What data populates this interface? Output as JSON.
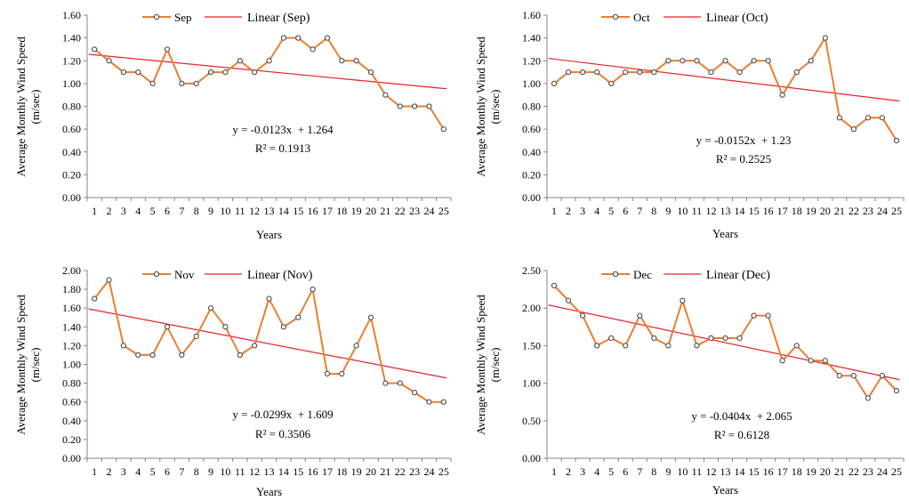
{
  "colors": {
    "series": "#ED7D31",
    "trend": "#E8232A",
    "axis": "#868686",
    "marker_fill": "#ffffff",
    "marker_stroke": "#404040"
  },
  "chart_data": [
    {
      "type": "line",
      "x": [
        1,
        2,
        3,
        4,
        5,
        6,
        7,
        8,
        9,
        10,
        11,
        12,
        13,
        14,
        15,
        16,
        17,
        18,
        19,
        20,
        21,
        22,
        23,
        24,
        25
      ],
      "categories": [
        "1",
        "2",
        "3",
        "4",
        "5",
        "6",
        "7",
        "8",
        "9",
        "10",
        "11",
        "12",
        "13",
        "14",
        "15",
        "16",
        "17",
        "18",
        "19",
        "20",
        "21",
        "22",
        "23",
        "24",
        "25"
      ],
      "series": [
        {
          "name": "Sep",
          "values": [
            1.3,
            1.2,
            1.1,
            1.1,
            1.0,
            1.3,
            1.0,
            1.0,
            1.1,
            1.1,
            1.2,
            1.1,
            1.2,
            1.4,
            1.4,
            1.3,
            1.4,
            1.2,
            1.2,
            1.1,
            0.9,
            0.8,
            0.8,
            0.8,
            0.6
          ]
        }
      ],
      "trendline": {
        "name": "Linear (Sep)",
        "slope": -0.0123,
        "intercept": 1.264,
        "equation": "y = -0.0123x  + 1.264",
        "r2": "R² = 0.1913"
      },
      "xlabel": "Years",
      "ylabel": "Average Monthly Wind Speed (m/sec)",
      "ylim": [
        0,
        1.6
      ],
      "yticks": [
        "0.00",
        "0.20",
        "0.40",
        "0.60",
        "0.80",
        "1.00",
        "1.20",
        "1.40",
        "1.60"
      ],
      "grid": false,
      "legend": "top"
    },
    {
      "type": "line",
      "x": [
        1,
        2,
        3,
        4,
        5,
        6,
        7,
        8,
        9,
        10,
        11,
        12,
        13,
        14,
        15,
        16,
        17,
        18,
        19,
        20,
        21,
        22,
        23,
        24,
        25
      ],
      "categories": [
        "1",
        "2",
        "3",
        "4",
        "5",
        "6",
        "7",
        "8",
        "9",
        "10",
        "11",
        "12",
        "13",
        "14",
        "15",
        "16",
        "17",
        "18",
        "19",
        "20",
        "21",
        "22",
        "23",
        "24",
        "25"
      ],
      "series": [
        {
          "name": "Oct",
          "values": [
            1.0,
            1.1,
            1.1,
            1.1,
            1.0,
            1.1,
            1.1,
            1.1,
            1.2,
            1.2,
            1.2,
            1.1,
            1.2,
            1.1,
            1.2,
            1.2,
            0.9,
            1.1,
            1.2,
            1.4,
            0.7,
            0.6,
            0.7,
            0.7,
            0.5
          ]
        }
      ],
      "trendline": {
        "name": "Linear (Oct)",
        "slope": -0.0152,
        "intercept": 1.23,
        "equation": "y = -0.0152x  + 1.23",
        "r2": "R² = 0.2525"
      },
      "xlabel": "Years",
      "ylabel": "Average Monthly Wind Speed (m/sec)",
      "ylim": [
        0,
        1.6
      ],
      "yticks": [
        "0.00",
        "0.20",
        "0.40",
        "0.60",
        "0.80",
        "1.00",
        "1.20",
        "1.40",
        "1.60"
      ],
      "grid": false,
      "legend": "top"
    },
    {
      "type": "line",
      "x": [
        1,
        2,
        3,
        4,
        5,
        6,
        7,
        8,
        9,
        10,
        11,
        12,
        13,
        14,
        15,
        16,
        17,
        18,
        19,
        20,
        21,
        22,
        23,
        24,
        25
      ],
      "categories": [
        "1",
        "2",
        "3",
        "4",
        "5",
        "6",
        "7",
        "8",
        "9",
        "10",
        "11",
        "12",
        "13",
        "14",
        "15",
        "16",
        "17",
        "18",
        "19",
        "20",
        "21",
        "22",
        "23",
        "24",
        "25"
      ],
      "series": [
        {
          "name": "Nov",
          "values": [
            1.7,
            1.9,
            1.2,
            1.1,
            1.1,
            1.4,
            1.1,
            1.3,
            1.6,
            1.4,
            1.1,
            1.2,
            1.7,
            1.4,
            1.5,
            1.8,
            0.9,
            0.9,
            1.2,
            1.5,
            0.8,
            0.8,
            0.7,
            0.6,
            0.6
          ]
        }
      ],
      "trendline": {
        "name": "Linear (Nov)",
        "slope": -0.0299,
        "intercept": 1.609,
        "equation": "y = -0.0299x  + 1.609",
        "r2": "R² = 0.3506"
      },
      "xlabel": "Years",
      "ylabel": "Average Monthly Wind Speed (m/sec)",
      "ylim": [
        0,
        2.0
      ],
      "yticks": [
        "0.00",
        "0.20",
        "0.40",
        "0.60",
        "0.80",
        "1.00",
        "1.20",
        "1.40",
        "1.60",
        "1.80",
        "2.00"
      ],
      "grid": false,
      "legend": "top"
    },
    {
      "type": "line",
      "x": [
        1,
        2,
        3,
        4,
        5,
        6,
        7,
        8,
        9,
        10,
        11,
        12,
        13,
        14,
        15,
        16,
        17,
        18,
        19,
        20,
        21,
        22,
        23,
        24,
        25
      ],
      "categories": [
        "1",
        "2",
        "3",
        "4",
        "5",
        "6",
        "7",
        "8",
        "9",
        "10",
        "11",
        "12",
        "13",
        "14",
        "15",
        "16",
        "17",
        "18",
        "19",
        "20",
        "21",
        "22",
        "23",
        "24",
        "25"
      ],
      "series": [
        {
          "name": "Dec",
          "values": [
            2.3,
            2.1,
            1.9,
            1.5,
            1.6,
            1.5,
            1.9,
            1.6,
            1.5,
            2.1,
            1.5,
            1.6,
            1.6,
            1.6,
            1.9,
            1.9,
            1.3,
            1.5,
            1.3,
            1.3,
            1.1,
            1.1,
            0.8,
            1.1,
            0.9
          ]
        }
      ],
      "trendline": {
        "name": "Linear (Dec)",
        "slope": -0.0404,
        "intercept": 2.065,
        "equation": "y = -0.0404x  + 2.065",
        "r2": "R² = 0.6128"
      },
      "xlabel": "Years",
      "ylabel": "Average Monthly Wind Speed (m/sec)",
      "ylim": [
        0,
        2.5
      ],
      "yticks": [
        "0.00",
        "0.50",
        "1.00",
        "1.50",
        "2.00",
        "2.50"
      ],
      "grid": false,
      "legend": "top"
    }
  ]
}
